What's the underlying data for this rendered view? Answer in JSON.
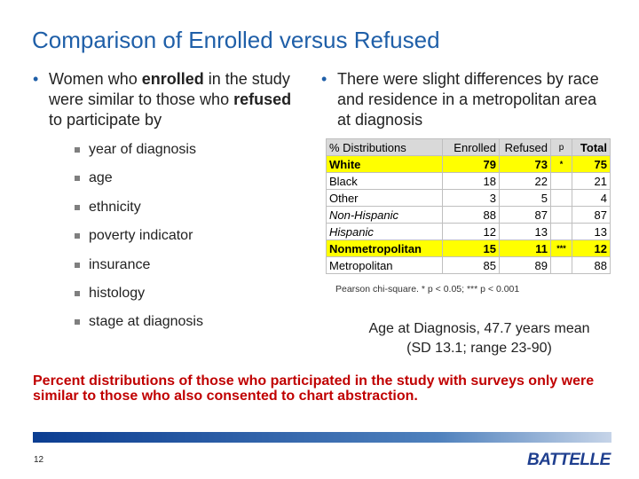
{
  "title": "Comparison of Enrolled versus Refused",
  "left_bullet": {
    "parts": [
      {
        "text": "Women who",
        "bold": false
      },
      {
        "text": "enrolled",
        "bold": true
      },
      {
        "text": "in the study were similar to those who",
        "bold": false
      },
      {
        "text": "refused",
        "bold": true
      },
      {
        "text": "to participate by",
        "bold": false
      }
    ]
  },
  "sub_bullets": [
    "year of diagnosis",
    "age",
    "ethnicity",
    "poverty indicator",
    "insurance",
    "histology",
    "stage at diagnosis"
  ],
  "right_bullet": "There were slight differences by race and residence in a metropolitan area at diagnosis",
  "table": {
    "header": [
      "% Distributions",
      "Enrolled",
      "Refused",
      "p",
      "Total"
    ],
    "rows": [
      {
        "label": "White",
        "enrolled": 79,
        "refused": 73,
        "p": "*",
        "total": 75,
        "highlight": true,
        "italic": false
      },
      {
        "label": "Black",
        "enrolled": 18,
        "refused": 22,
        "p": null,
        "total": 21,
        "highlight": false,
        "italic": false
      },
      {
        "label": "Other",
        "enrolled": 3,
        "refused": 5,
        "p": null,
        "total": 4,
        "highlight": false,
        "italic": false
      },
      {
        "label": "Non-Hispanic",
        "enrolled": 88,
        "refused": 87,
        "p": null,
        "total": 87,
        "highlight": false,
        "italic": true
      },
      {
        "label": "Hispanic",
        "enrolled": 12,
        "refused": 13,
        "p": null,
        "total": 13,
        "highlight": false,
        "italic": true
      },
      {
        "label": "Nonmetropolitan",
        "enrolled": 15,
        "refused": 11,
        "p": "***",
        "total": 12,
        "highlight": true,
        "italic": false
      },
      {
        "label": "Metropolitan",
        "enrolled": 85,
        "refused": 89,
        "p": null,
        "total": 88,
        "highlight": false,
        "italic": false
      }
    ]
  },
  "footnote": "Pearson chi-square.  * p < 0.05; *** p < 0.001",
  "age_note": [
    "Age at Diagnosis, 47.7 years mean",
    "(SD 13.1; range 23-90)"
  ],
  "conclusion": "Percent distributions of those who participated in the study with surveys only were similar to those who also consented to chart abstraction.",
  "page_number": "12",
  "logo": "BATTELLE"
}
